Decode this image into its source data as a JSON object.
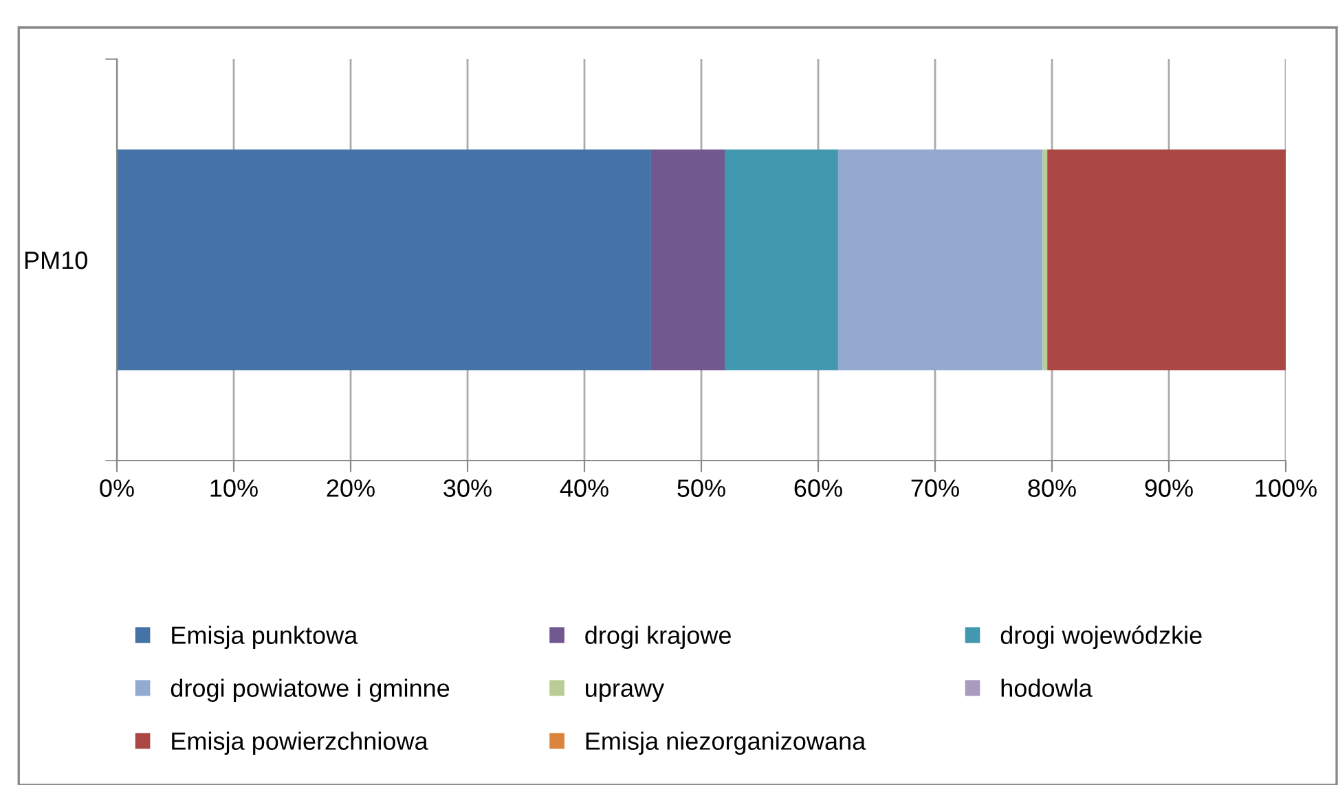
{
  "chart_data": {
    "type": "bar",
    "orientation": "horizontal",
    "stacked": true,
    "categories": [
      "PM10"
    ],
    "series": [
      {
        "name": "Emisja punktowa",
        "color": "#4572a7",
        "values": [
          45.7
        ]
      },
      {
        "name": "drogi krajowe",
        "color": "#71588f",
        "values": [
          6.3
        ]
      },
      {
        "name": "drogi wojewódzkie",
        "color": "#4198af",
        "values": [
          9.7
        ]
      },
      {
        "name": "drogi powiatowe i gminne",
        "color": "#93a9cf",
        "values": [
          17.5
        ]
      },
      {
        "name": "uprawy",
        "color": "#b9cd96",
        "values": [
          0.4
        ]
      },
      {
        "name": "hodowla",
        "color": "#a99bbd",
        "values": [
          0
        ]
      },
      {
        "name": "Emisja powierzchniowa",
        "color": "#aa4643",
        "values": [
          20.4
        ]
      },
      {
        "name": "Emisja niezorganizowana",
        "color": "#db843d",
        "values": [
          0
        ]
      }
    ],
    "xlim": [
      0,
      100
    ],
    "xticks": [
      {
        "value": 0,
        "label": "0%"
      },
      {
        "value": 10,
        "label": "10%"
      },
      {
        "value": 20,
        "label": "20%"
      },
      {
        "value": 30,
        "label": "30%"
      },
      {
        "value": 40,
        "label": "40%"
      },
      {
        "value": 50,
        "label": "50%"
      },
      {
        "value": 60,
        "label": "60%"
      },
      {
        "value": 70,
        "label": "70%"
      },
      {
        "value": 80,
        "label": "80%"
      },
      {
        "value": 90,
        "label": "90%"
      },
      {
        "value": 100,
        "label": "100%"
      }
    ],
    "grid": "x",
    "legend": "bottom"
  }
}
